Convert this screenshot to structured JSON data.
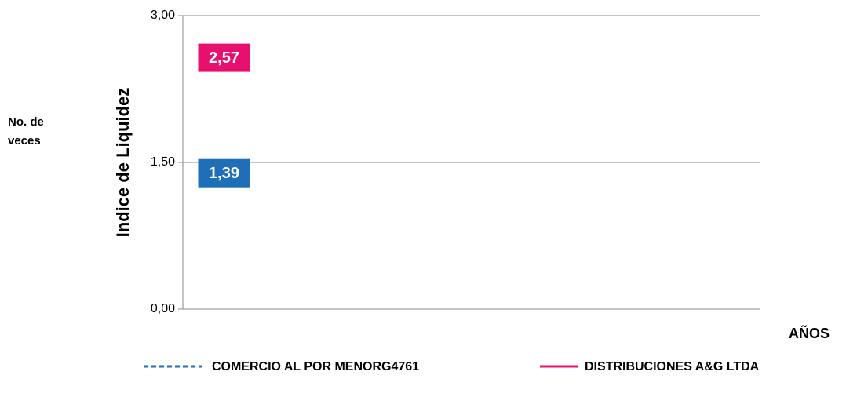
{
  "chart_data": {
    "type": "line",
    "y_label": "Indice de Liquidez",
    "y_unit": [
      "No. de",
      "veces"
    ],
    "x_label": "AÑOS",
    "categories": [
      null,
      null,
      null,
      null,
      null,
      null,
      null
    ],
    "series": [
      {
        "name": "COMERCIO AL POR MENORG4761",
        "color": "#1f6fb8",
        "dash": true,
        "values": [
          1.39,
          null,
          null,
          null,
          null,
          null,
          null
        ],
        "value_labels": [
          "1,39",
          null,
          null,
          null,
          null,
          null,
          null
        ]
      },
      {
        "name": "DISTRIBUCIONES A&G LTDA",
        "color": "#e8106e",
        "dash": false,
        "values": [
          2.57,
          null,
          null,
          null,
          null,
          null,
          null
        ],
        "value_labels": [
          "2,57",
          null,
          null,
          null,
          null,
          null,
          null
        ]
      }
    ],
    "ylim": [
      0,
      3
    ],
    "yticks": [
      {
        "value": 0,
        "label": "0,00"
      },
      {
        "value": 1.5,
        "label": "1,50"
      },
      {
        "value": 3,
        "label": "3,00"
      }
    ],
    "grid": true
  }
}
